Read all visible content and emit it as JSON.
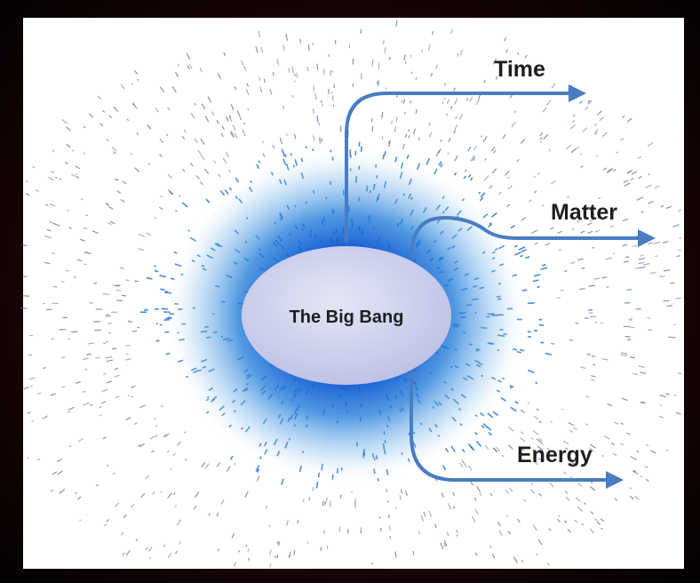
{
  "center": {
    "label": "The Big Bang"
  },
  "outputs": [
    {
      "label": "Time"
    },
    {
      "label": "Matter"
    },
    {
      "label": "Energy"
    }
  ]
}
